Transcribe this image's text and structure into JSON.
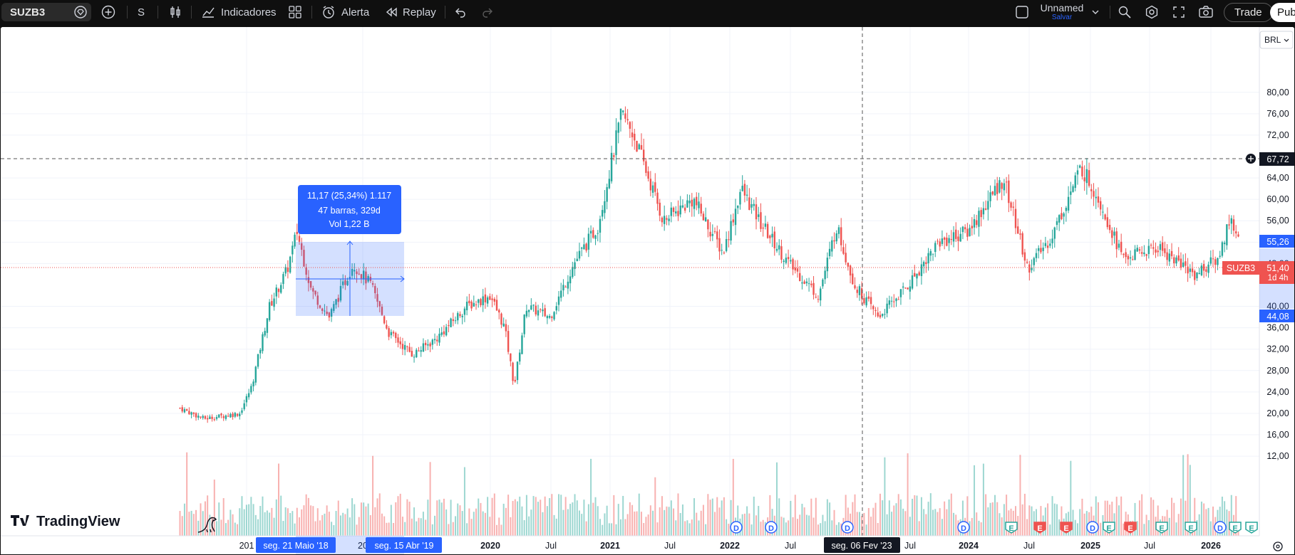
{
  "toolbar": {
    "symbol": "SUZB3",
    "interval": "S",
    "indicators_label": "Indicadores",
    "alert_label": "Alerta",
    "replay_label": "Replay",
    "layout_name": "Unnamed",
    "save_label": "Salvar",
    "trade_label": "Trade",
    "publish_label": "Pub"
  },
  "chart": {
    "currency": "BRL",
    "brand": "TradingView",
    "ticker_label": "SUZB3",
    "last_price": "51,40",
    "countdown": "1d 4h",
    "crosshair_price": "67,72",
    "range_high": "55,26",
    "range_low": "44,08",
    "crosshair_date": "seg. 06 Fev '23",
    "range_start_date": "seg. 21 Maio '18",
    "range_end_date": "seg. 15 Abr '19",
    "measure": {
      "line1": "11,17 (25,34%) 1.117",
      "line2": "47 barras, 329d",
      "line3": "Vol 1,22 B"
    },
    "colors": {
      "up": "#26a69a",
      "down": "#ef5350",
      "accent": "#2962ff",
      "measure_fill": "#2962ff"
    }
  },
  "chart_data": {
    "type": "candlestick",
    "yaxis_ticks": [
      "80,00",
      "76,00",
      "72,00",
      "64,00",
      "60,00",
      "56,00",
      "52,00",
      "48,00",
      "40,00",
      "36,00",
      "32,00",
      "28,00",
      "24,00",
      "20,00",
      "16,00",
      "12,00"
    ],
    "xaxis_ticks": [
      "201",
      "20",
      "2020",
      "Jul",
      "2021",
      "Jul",
      "2022",
      "Jul",
      "Jul",
      "2024",
      "Jul",
      "2025",
      "Jul",
      "2026"
    ],
    "ylim": [
      12,
      84
    ],
    "close_trajectory": [
      [
        2017.4,
        21
      ],
      [
        2017.6,
        19
      ],
      [
        2017.9,
        20
      ],
      [
        2018.0,
        25
      ],
      [
        2018.15,
        40
      ],
      [
        2018.3,
        47
      ],
      [
        2018.38,
        54
      ],
      [
        2018.5,
        43
      ],
      [
        2018.65,
        38
      ],
      [
        2018.85,
        48
      ],
      [
        2019.0,
        44
      ],
      [
        2019.15,
        35
      ],
      [
        2019.35,
        31
      ],
      [
        2019.55,
        34
      ],
      [
        2019.8,
        40
      ],
      [
        2020.0,
        42
      ],
      [
        2020.12,
        36
      ],
      [
        2020.2,
        25
      ],
      [
        2020.3,
        40
      ],
      [
        2020.5,
        38
      ],
      [
        2020.7,
        48
      ],
      [
        2020.9,
        55
      ],
      [
        2021.1,
        76
      ],
      [
        2021.2,
        72
      ],
      [
        2021.45,
        56
      ],
      [
        2021.7,
        60
      ],
      [
        2021.95,
        50
      ],
      [
        2022.1,
        62
      ],
      [
        2022.25,
        56
      ],
      [
        2022.5,
        48
      ],
      [
        2022.75,
        42
      ],
      [
        2022.9,
        55
      ],
      [
        2023.05,
        44
      ],
      [
        2023.25,
        38
      ],
      [
        2023.5,
        44
      ],
      [
        2023.75,
        52
      ],
      [
        2024.0,
        54
      ],
      [
        2024.3,
        64
      ],
      [
        2024.5,
        47
      ],
      [
        2024.7,
        53
      ],
      [
        2024.95,
        66
      ],
      [
        2025.1,
        60
      ],
      [
        2025.3,
        49
      ],
      [
        2025.6,
        51
      ],
      [
        2025.9,
        46
      ],
      [
        2026.1,
        49
      ],
      [
        2026.2,
        57
      ],
      [
        2026.28,
        51
      ]
    ],
    "markers": [
      "D",
      "D",
      "D",
      "D",
      "E",
      "E",
      "E",
      "D",
      "E",
      "E",
      "E",
      "E",
      "D",
      "E",
      "E"
    ]
  },
  "icons": {
    "top": [
      "gem-icon",
      "plus-circle-icon",
      "candles-icon",
      "indicators-icon",
      "grid-icon",
      "alert-clock-icon",
      "replay-icon",
      "undo-icon",
      "redo-icon",
      "checkbox-icon",
      "chevron-down-icon",
      "zoom-icon",
      "settings-icon",
      "fullscreen-icon",
      "camera-icon"
    ]
  }
}
